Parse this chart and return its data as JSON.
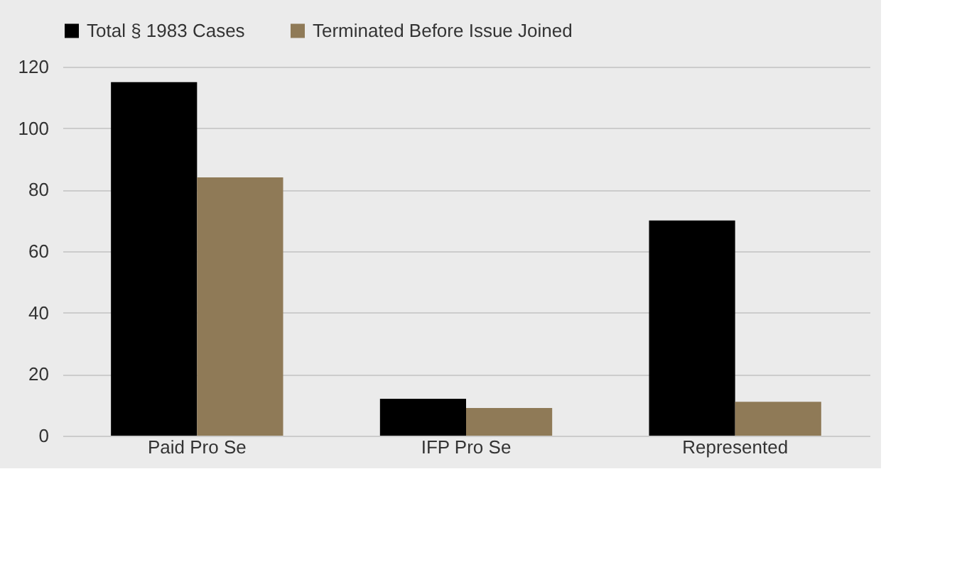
{
  "chart_data": {
    "type": "bar",
    "categories": [
      "Paid Pro Se",
      "IFP Pro Se",
      "Represented"
    ],
    "series": [
      {
        "name": "Total § 1983 Cases",
        "color": "#000000",
        "values": [
          115,
          12,
          70
        ]
      },
      {
        "name": "Terminated Before Issue Joined",
        "color": "#8f7a57",
        "values": [
          84,
          9,
          11
        ]
      }
    ],
    "ylim": [
      0,
      120
    ],
    "yticks": [
      0,
      20,
      40,
      60,
      80,
      100,
      120
    ],
    "grid": "y",
    "legend": "top"
  }
}
